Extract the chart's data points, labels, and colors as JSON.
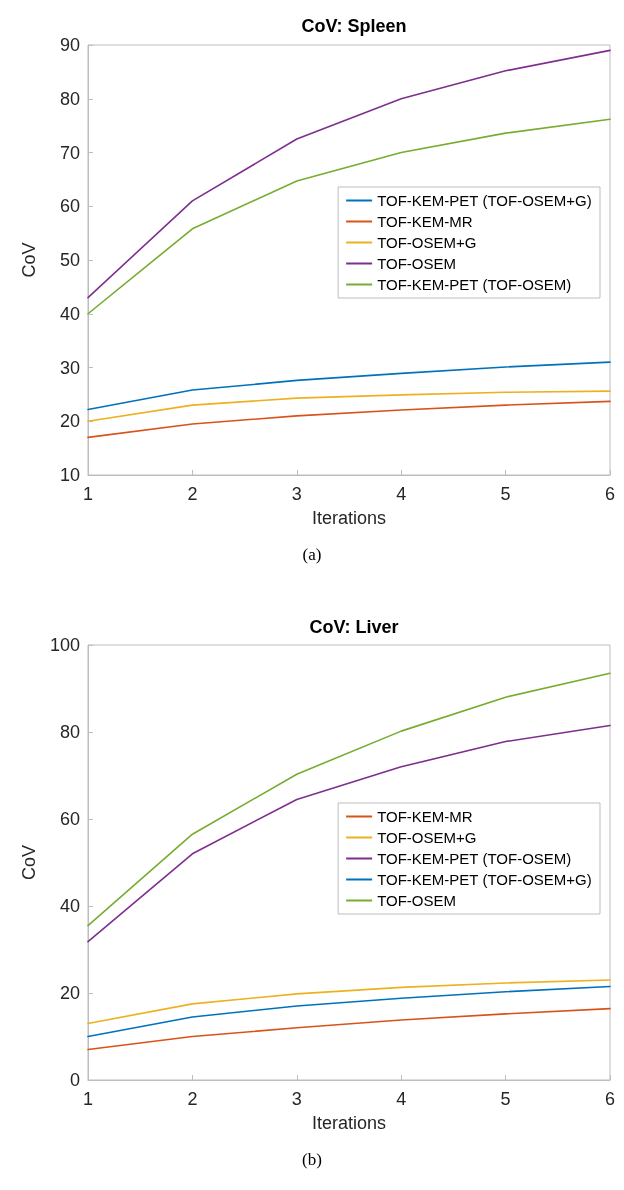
{
  "chart_data": [
    {
      "type": "line",
      "title": "CoV: Spleen",
      "xlabel": "Iterations",
      "ylabel": "CoV",
      "annotations": [
        "(a)"
      ],
      "x": [
        1,
        2,
        3,
        4,
        5,
        6
      ],
      "xlim": [
        1,
        6
      ],
      "xticks": [
        1,
        2,
        3,
        4,
        5,
        6
      ],
      "ylim": [
        10,
        90
      ],
      "yticks": [
        10,
        20,
        30,
        40,
        50,
        60,
        70,
        80,
        90
      ],
      "grid": false,
      "legend": "right",
      "marker": "none",
      "line_style": "solid",
      "series": [
        {
          "name": "TOF-KEM-PET (TOF-OSEM+G)",
          "color": "#0072bd",
          "values": [
            22.2,
            25.8,
            27.6,
            28.9,
            30.1,
            31.0
          ]
        },
        {
          "name": "TOF-KEM-MR",
          "color": "#d95319",
          "values": [
            17,
            19.5,
            21,
            22.1,
            23,
            23.7
          ]
        },
        {
          "name": "TOF-OSEM+G",
          "color": "#edb120",
          "values": [
            20,
            23,
            24.3,
            24.9,
            25.4,
            25.6
          ]
        },
        {
          "name": "TOF-OSEM",
          "color": "#7e2f8e",
          "values": [
            43,
            61,
            72.5,
            80,
            85.2,
            89
          ]
        },
        {
          "name": "TOF-KEM-PET (TOF-OSEM)",
          "color": "#77ac30",
          "values": [
            40,
            55.8,
            64.7,
            70,
            73.6,
            76.2
          ]
        }
      ]
    },
    {
      "type": "line",
      "title": "CoV: Liver",
      "xlabel": "Iterations",
      "ylabel": "CoV",
      "annotations": [
        "(b)"
      ],
      "x": [
        1,
        2,
        3,
        4,
        5,
        6
      ],
      "xlim": [
        1,
        6
      ],
      "xticks": [
        1,
        2,
        3,
        4,
        5,
        6
      ],
      "ylim": [
        0,
        100
      ],
      "yticks": [
        0,
        20,
        40,
        60,
        80,
        100
      ],
      "grid": false,
      "legend": "right",
      "marker": "none",
      "line_style": "solid",
      "series": [
        {
          "name": "TOF-KEM-MR",
          "color": "#d95319",
          "values": [
            7,
            10,
            12,
            13.8,
            15.2,
            16.4
          ]
        },
        {
          "name": "TOF-OSEM+G",
          "color": "#edb120",
          "values": [
            13,
            17.5,
            19.8,
            21.3,
            22.3,
            23
          ]
        },
        {
          "name": "TOF-KEM-PET (TOF-OSEM)",
          "color": "#7e2f8e",
          "values": [
            31.8,
            52,
            64.5,
            72,
            77.8,
            81.5
          ]
        },
        {
          "name": "TOF-KEM-PET (TOF-OSEM+G)",
          "color": "#0072bd",
          "values": [
            10,
            14.5,
            17,
            18.8,
            20.3,
            21.5
          ]
        },
        {
          "name": "TOF-OSEM",
          "color": "#77ac30",
          "values": [
            35.5,
            56.5,
            70.3,
            80.2,
            88,
            93.5
          ]
        }
      ]
    }
  ]
}
